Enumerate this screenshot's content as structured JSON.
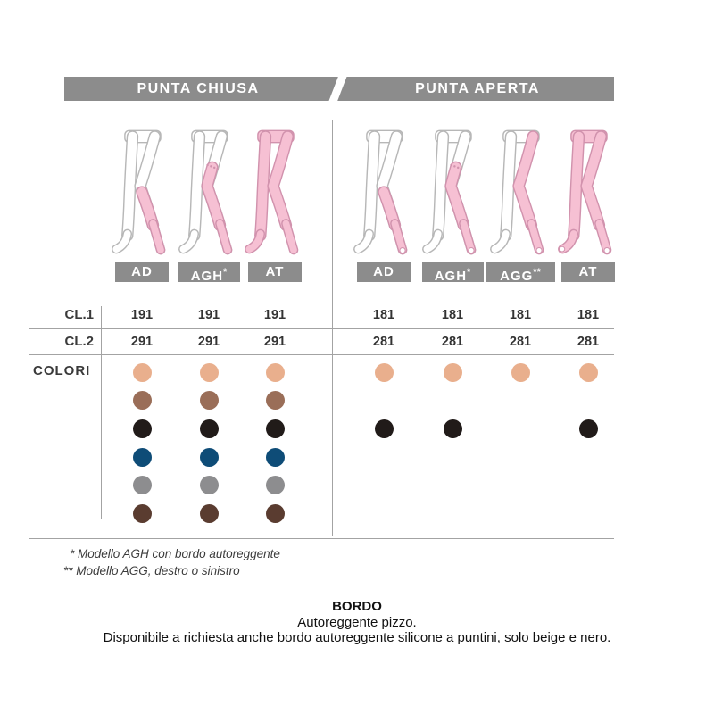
{
  "header": {
    "left": "PUNTA CHIUSA",
    "right": "PUNTA APERTA"
  },
  "sections": [
    {
      "id": "punta-chiusa",
      "models": [
        {
          "name": "AD",
          "sup": "",
          "colors": [
            "beige",
            "brown",
            "black",
            "navy",
            "grey",
            "dark-brown"
          ]
        },
        {
          "name": "AGH",
          "sup": "*",
          "colors": [
            "beige",
            "brown",
            "black",
            "navy",
            "grey",
            "dark-brown"
          ]
        },
        {
          "name": "AT",
          "sup": "",
          "colors": [
            "beige",
            "brown",
            "black",
            "navy",
            "grey",
            "dark-brown"
          ]
        }
      ]
    },
    {
      "id": "punta-aperta",
      "models": [
        {
          "name": "AD",
          "sup": "",
          "colors": [
            "beige",
            "black"
          ]
        },
        {
          "name": "AGH",
          "sup": "*",
          "colors": [
            "beige",
            "black"
          ]
        },
        {
          "name": "AGG",
          "sup": "**",
          "colors": [
            "beige"
          ]
        },
        {
          "name": "AT",
          "sup": "",
          "colors": [
            "beige",
            "black"
          ]
        }
      ]
    }
  ],
  "class_rows": [
    {
      "label": "CL.1",
      "closed": [
        "191",
        "191",
        "191"
      ],
      "open": [
        "181",
        "181",
        "181",
        "181"
      ]
    },
    {
      "label": "CL.2",
      "closed": [
        "291",
        "291",
        "291"
      ],
      "open": [
        "281",
        "281",
        "281",
        "281"
      ]
    }
  ],
  "colors_label": "COLORI",
  "palette": [
    {
      "name": "beige",
      "hex": "#e9af8d"
    },
    {
      "name": "brown",
      "hex": "#9a6e58"
    },
    {
      "name": "black",
      "hex": "#211b19"
    },
    {
      "name": "navy",
      "hex": "#0e4c77"
    },
    {
      "name": "grey",
      "hex": "#8d8d8f"
    },
    {
      "name": "dark-brown",
      "hex": "#5a3c30"
    }
  ],
  "footnotes": [
    "* Modello AGH con bordo autoreggente",
    "** Modello AGG, destro o sinistro"
  ],
  "bordo": {
    "title": "BORDO",
    "line1": "Autoreggente pizzo.",
    "line2": "Disponibile a richiesta anche bordo autoreggente silicone a puntini, solo beige e nero."
  }
}
